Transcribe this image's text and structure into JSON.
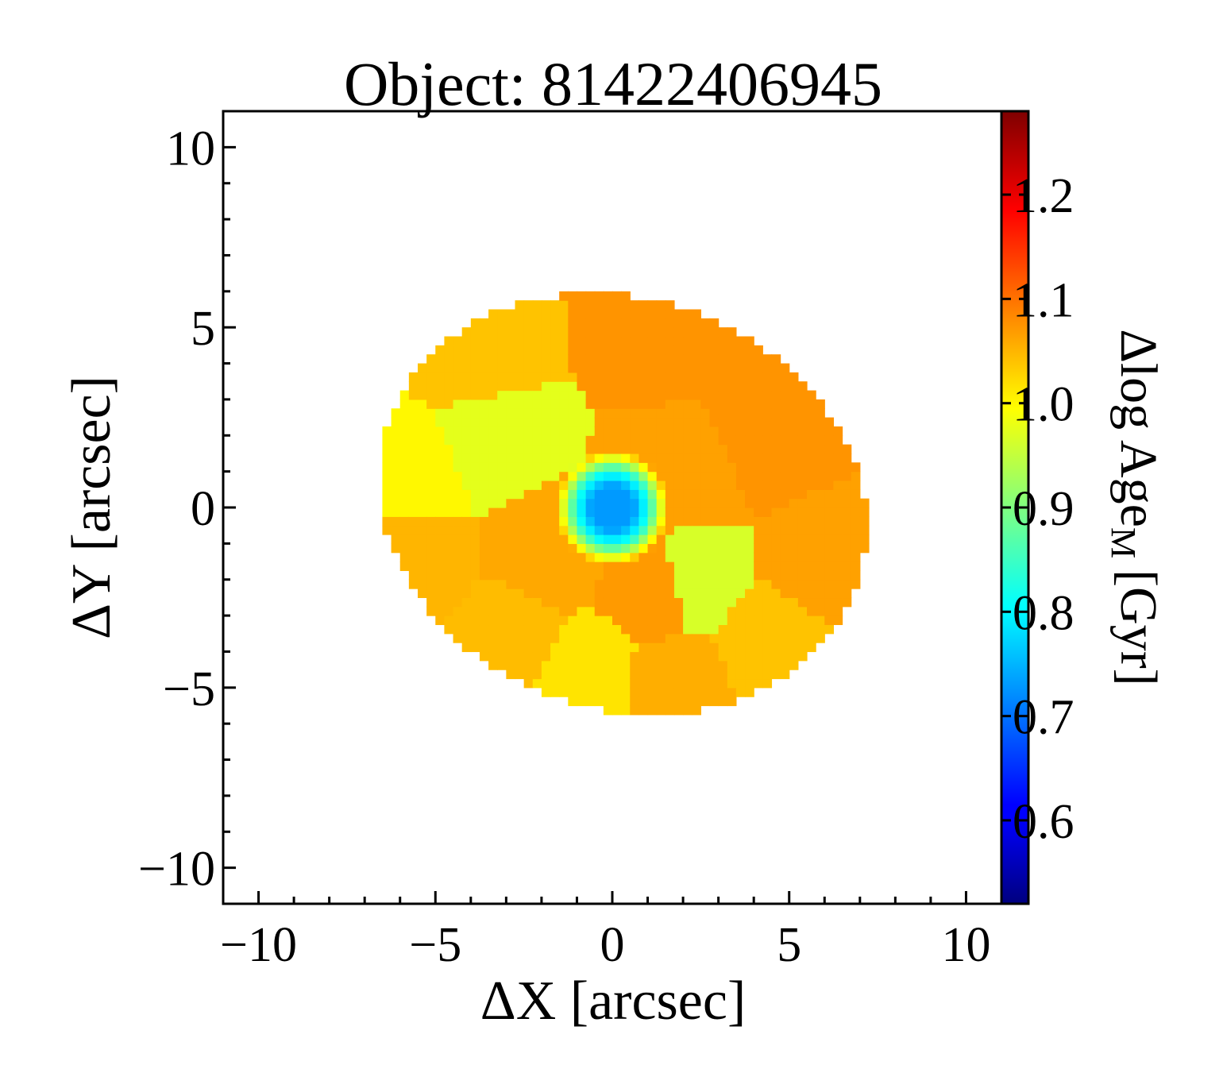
{
  "chart_data": {
    "type": "heatmap",
    "title": "Object: 81422406945",
    "xlabel": "ΔX [arcsec]",
    "ylabel": "ΔY [arcsec]",
    "colorbar_label": "Δlog Age",
    "colorbar_label_sub": "M",
    "colorbar_label_unit": "[Gyr]",
    "xlim": [
      -11,
      11
    ],
    "ylim": [
      -11,
      11
    ],
    "xticks": [
      -10,
      -5,
      0,
      5,
      10
    ],
    "xtick_labels": [
      "−10",
      "−5",
      "0",
      "5",
      "10"
    ],
    "yticks": [
      -10,
      -5,
      0,
      5,
      10
    ],
    "ytick_labels": [
      "−10",
      "−5",
      "0",
      "5",
      "10"
    ],
    "colorbar_range": [
      0.52,
      1.28
    ],
    "colorbar_ticks": [
      0.6,
      0.7,
      0.8,
      0.9,
      1.0,
      1.1,
      1.2
    ],
    "colorbar_tick_labels": [
      "0.6",
      "0.7",
      "0.8",
      "0.9",
      "1.0",
      "1.1",
      "1.2"
    ],
    "colormap": "jet",
    "grid": false,
    "map": {
      "center": [
        0.3,
        0.1
      ],
      "semi_major_arcsec": 7.0,
      "semi_minor_arcsec": 5.7,
      "rotation_deg": -18,
      "baseline_value": 1.045,
      "core_value": 0.73,
      "ring_value": 0.82,
      "regions": [
        {
          "x": -5.5,
          "y": 1.0,
          "value": 1.0
        },
        {
          "x": -4.0,
          "y": 4.3,
          "value": 1.04
        },
        {
          "x": 1.5,
          "y": 5.0,
          "value": 1.075
        },
        {
          "x": 4.5,
          "y": 2.0,
          "value": 1.075
        },
        {
          "x": 6.0,
          "y": -1.5,
          "value": 1.065
        },
        {
          "x": 4.5,
          "y": -3.8,
          "value": 1.04
        },
        {
          "x": 1.8,
          "y": -5.0,
          "value": 1.055
        },
        {
          "x": -0.7,
          "y": -4.8,
          "value": 1.015
        },
        {
          "x": -3.0,
          "y": -3.5,
          "value": 1.045
        },
        {
          "x": -5.5,
          "y": -1.6,
          "value": 1.05
        },
        {
          "x": -3.5,
          "y": 1.8,
          "value": 0.975
        },
        {
          "x": -2.0,
          "y": -1.3,
          "value": 1.06
        },
        {
          "x": 1.4,
          "y": -2.2,
          "value": 1.07
        },
        {
          "x": 2.2,
          "y": -2.0,
          "value": 0.965
        },
        {
          "x": 2.0,
          "y": 0.8,
          "value": 1.065
        }
      ]
    }
  }
}
